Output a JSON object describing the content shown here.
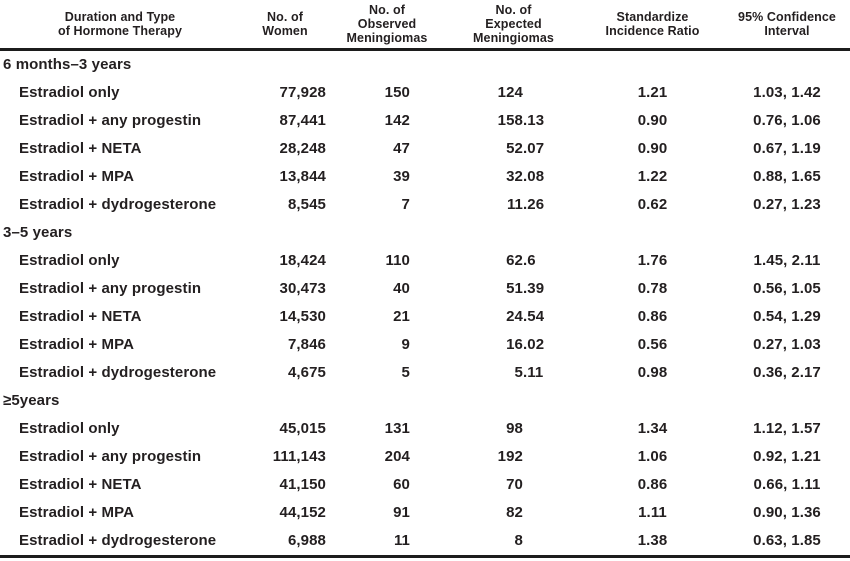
{
  "table": {
    "columns": [
      {
        "id": "therapy",
        "label": "Duration and Type\nof Hormone Therapy"
      },
      {
        "id": "women",
        "label": "No. of\nWomen"
      },
      {
        "id": "observed",
        "label": "No. of\nObserved\nMeningiomas"
      },
      {
        "id": "expected",
        "label": "No. of\nExpected\nMeningiomas"
      },
      {
        "id": "sir",
        "label": "Standardize\nIncidence Ratio"
      },
      {
        "id": "ci",
        "label": "95% Confidence\nInterval"
      }
    ],
    "groups": [
      {
        "label": "6 months–3 years",
        "rows": [
          {
            "therapy": "Estradiol only",
            "women": "77,928",
            "observed": "150",
            "expected": "124",
            "sir": "1.21",
            "ci": "1.03, 1.42"
          },
          {
            "therapy": "Estradiol + any progestin",
            "women": "87,441",
            "observed": "142",
            "expected": "158.13",
            "sir": "0.90",
            "ci": "0.76, 1.06"
          },
          {
            "therapy": "Estradiol + NETA",
            "women": "28,248",
            "observed": "47",
            "expected": "52.07",
            "sir": "0.90",
            "ci": "0.67, 1.19"
          },
          {
            "therapy": "Estradiol + MPA",
            "women": "13,844",
            "observed": "39",
            "expected": "32.08",
            "sir": "1.22",
            "ci": "0.88, 1.65"
          },
          {
            "therapy": "Estradiol + dydrogesterone",
            "women": "8,545",
            "observed": "7",
            "expected": "11.26",
            "sir": "0.62",
            "ci": "0.27, 1.23"
          }
        ]
      },
      {
        "label": "3–5 years",
        "rows": [
          {
            "therapy": "Estradiol only",
            "women": "18,424",
            "observed": "110",
            "expected": "62.6",
            "sir": "1.76",
            "ci": "1.45, 2.11"
          },
          {
            "therapy": "Estradiol + any progestin",
            "women": "30,473",
            "observed": "40",
            "expected": "51.39",
            "sir": "0.78",
            "ci": "0.56, 1.05"
          },
          {
            "therapy": "Estradiol + NETA",
            "women": "14,530",
            "observed": "21",
            "expected": "24.54",
            "sir": "0.86",
            "ci": "0.54, 1.29"
          },
          {
            "therapy": "Estradiol + MPA",
            "women": "7,846",
            "observed": "9",
            "expected": "16.02",
            "sir": "0.56",
            "ci": "0.27, 1.03"
          },
          {
            "therapy": "Estradiol + dydrogesterone",
            "women": "4,675",
            "observed": "5",
            "expected": "5.11",
            "sir": "0.98",
            "ci": "0.36, 2.17"
          }
        ]
      },
      {
        "label": "≥5years",
        "rows": [
          {
            "therapy": "Estradiol only",
            "women": "45,015",
            "observed": "131",
            "expected": "98",
            "sir": "1.34",
            "ci": "1.12, 1.57"
          },
          {
            "therapy": "Estradiol + any progestin",
            "women": "111,143",
            "observed": "204",
            "expected": "192",
            "sir": "1.06",
            "ci": "0.92, 1.21"
          },
          {
            "therapy": "Estradiol + NETA",
            "women": "41,150",
            "observed": "60",
            "expected": "70",
            "sir": "0.86",
            "ci": "0.66, 1.11"
          },
          {
            "therapy": "Estradiol + MPA",
            "women": "44,152",
            "observed": "91",
            "expected": "82",
            "sir": "1.11",
            "ci": "0.90, 1.36"
          },
          {
            "therapy": "Estradiol + dydrogesterone",
            "women": "6,988",
            "observed": "11",
            "expected": "8",
            "sir": "1.38",
            "ci": "0.63, 1.85"
          }
        ]
      }
    ]
  },
  "colors": {
    "text": "#231f20",
    "rule": "#1c1c1c",
    "background": "#ffffff"
  }
}
